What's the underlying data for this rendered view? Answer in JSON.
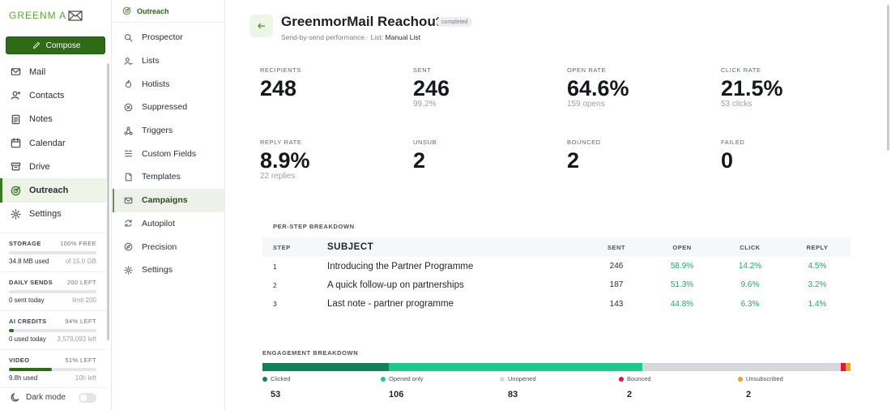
{
  "app": {
    "logo_text": "GREENM A"
  },
  "sidebar": {
    "compose_label": "Compose",
    "items": [
      {
        "label": "Mail",
        "icon": "mail-icon"
      },
      {
        "label": "Contacts",
        "icon": "contacts-icon"
      },
      {
        "label": "Notes",
        "icon": "notes-icon"
      },
      {
        "label": "Calendar",
        "icon": "calendar-icon"
      },
      {
        "label": "Drive",
        "icon": "drive-icon"
      },
      {
        "label": "Outreach",
        "icon": "outreach-icon",
        "active": true
      },
      {
        "label": "Settings",
        "icon": "gear-icon"
      }
    ],
    "meters": [
      {
        "label": "STORAGE",
        "right": "100% FREE",
        "used": "34.8 MB used",
        "limit": "of 15.0 GB",
        "fill": 0.0
      },
      {
        "label": "DAILY SENDS",
        "right": "200 LEFT",
        "used": "0 sent today",
        "limit": "limit 200",
        "fill": 0.0
      },
      {
        "label": "AI CREDITS",
        "right": "94% LEFT",
        "used": "0 used today",
        "limit": "3,579,093 left",
        "fill": 0.06
      },
      {
        "label": "VIDEO",
        "right": "51% LEFT",
        "used": "9.8h used",
        "limit": "10h left",
        "fill": 0.49
      }
    ],
    "dark_mode_label": "Dark mode"
  },
  "subnav": {
    "title": "Outreach",
    "items": [
      {
        "label": "Prospector",
        "icon": "search-icon"
      },
      {
        "label": "Lists",
        "icon": "lists-icon"
      },
      {
        "label": "Hotlists",
        "icon": "flame-icon"
      },
      {
        "label": "Suppressed",
        "icon": "block-icon"
      },
      {
        "label": "Triggers",
        "icon": "trigger-icon"
      },
      {
        "label": "Custom Fields",
        "icon": "fields-icon"
      },
      {
        "label": "Templates",
        "icon": "template-icon"
      },
      {
        "label": "Campaigns",
        "icon": "mail-icon",
        "active": true
      },
      {
        "label": "Autopilot",
        "icon": "refresh-icon"
      },
      {
        "label": "Precision",
        "icon": "compass-icon"
      },
      {
        "label": "Settings",
        "icon": "gear-icon"
      }
    ]
  },
  "campaign": {
    "title": "GreenmorMail Reachout",
    "status": "completed",
    "subtitle_prefix": "Send-by-send performance.· List: ",
    "list_name": "Manual List"
  },
  "stats": [
    {
      "label": "RECIPIENTS",
      "value": "248",
      "sub": ""
    },
    {
      "label": "SENT",
      "value": "246",
      "sub": "99.2%"
    },
    {
      "label": "OPEN RATE",
      "value": "64.6%",
      "sub": "159 opens"
    },
    {
      "label": "CLICK RATE",
      "value": "21.5%",
      "sub": "53 clicks"
    },
    {
      "label": "REPLY RATE",
      "value": "8.9%",
      "sub": "22 replies"
    },
    {
      "label": "UNSUB",
      "value": "2",
      "sub": ""
    },
    {
      "label": "BOUNCED",
      "value": "2",
      "sub": ""
    },
    {
      "label": "FAILED",
      "value": "0",
      "sub": ""
    }
  ],
  "per_step": {
    "title": "PER-STEP BREAKDOWN",
    "headers": {
      "step": "STEP",
      "subject": "SUBJECT",
      "sent": "SENT",
      "open": "OPEN",
      "click": "CLICK",
      "reply": "REPLY"
    },
    "rows": [
      {
        "step": "1",
        "subject": "Introducing the Partner Programme",
        "sent": "246",
        "open": "58.9%",
        "click": "14.2%",
        "reply": "4.5%"
      },
      {
        "step": "2",
        "subject": "A quick follow-up on partnerships",
        "sent": "187",
        "open": "51.3%",
        "click": "9.6%",
        "reply": "3.2%"
      },
      {
        "step": "3",
        "subject": "Last note - partner programme",
        "sent": "143",
        "open": "44.8%",
        "click": "6.3%",
        "reply": "1.4%"
      }
    ]
  },
  "engagement": {
    "title": "ENGAGEMENT BREAKDOWN",
    "segments": [
      {
        "label": "Clicked",
        "value": 53,
        "display": "53",
        "color": "#13805a"
      },
      {
        "label": "Opened only",
        "value": 106,
        "display": "106",
        "color": "#1fc98a"
      },
      {
        "label": "Unopened",
        "value": 83,
        "display": "83",
        "color": "#d5d8dc"
      },
      {
        "label": "Bounced",
        "value": 2,
        "display": "2",
        "color": "#e0144c"
      },
      {
        "label": "Unsubscribed",
        "value": 2,
        "display": "2",
        "color": "#f3a21b"
      }
    ]
  }
}
